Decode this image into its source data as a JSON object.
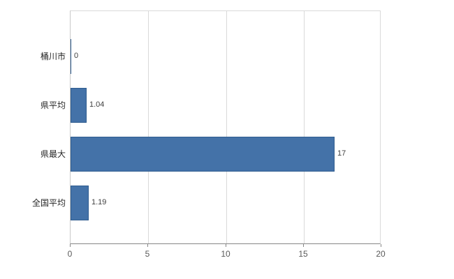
{
  "chart_data": {
    "type": "bar",
    "orientation": "horizontal",
    "title": "",
    "xlabel": "",
    "ylabel": "",
    "categories": [
      "桶川市",
      "県平均",
      "県最大",
      "全国平均"
    ],
    "values": [
      0,
      1.04,
      17,
      1.19
    ],
    "value_labels": [
      "0",
      "1.04",
      "17",
      "1.19"
    ],
    "xlim": [
      0,
      20
    ],
    "x_ticks": [
      0,
      5,
      10,
      15,
      20
    ],
    "x_tick_labels": [
      "0",
      "5",
      "10",
      "15",
      "20"
    ],
    "grid": true,
    "legend_position": "none",
    "bar_color": "#4472a8",
    "bar_border_color": "#2e5c8f",
    "grid_color": "#d9d9d9",
    "axis_color": "#868686",
    "background_color": "#ffffff"
  }
}
